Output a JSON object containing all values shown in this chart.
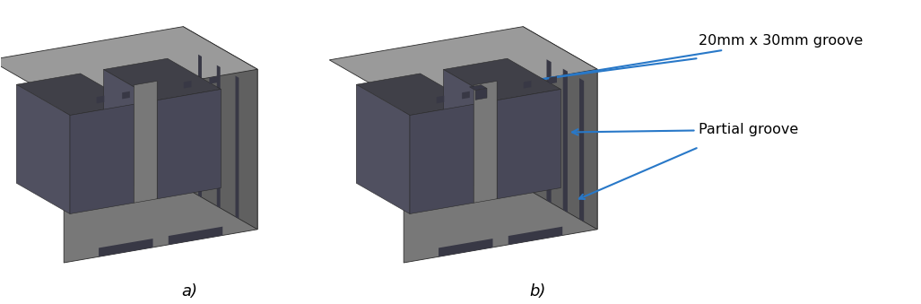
{
  "fig_width": 10.27,
  "fig_height": 3.39,
  "dpi": 100,
  "bg_color": "#ffffff",
  "label_a": "a)",
  "label_b": "b)",
  "text_color": "#000000",
  "arrow_color": "#2878c8",
  "label_fontsize": 13,
  "annot_fontsize": 11.5,
  "top_color": "#9a9a9a",
  "left_color": "#787878",
  "right_color": "#606060",
  "dark_color": "#404048",
  "inner_color": "#484858",
  "inner_left_color": "#505060",
  "groove_dark": "#383845",
  "edge_color": "#2a2a2a",
  "annot1_text": "20mm x 30mm groove",
  "annot2_text": "Partial groove"
}
